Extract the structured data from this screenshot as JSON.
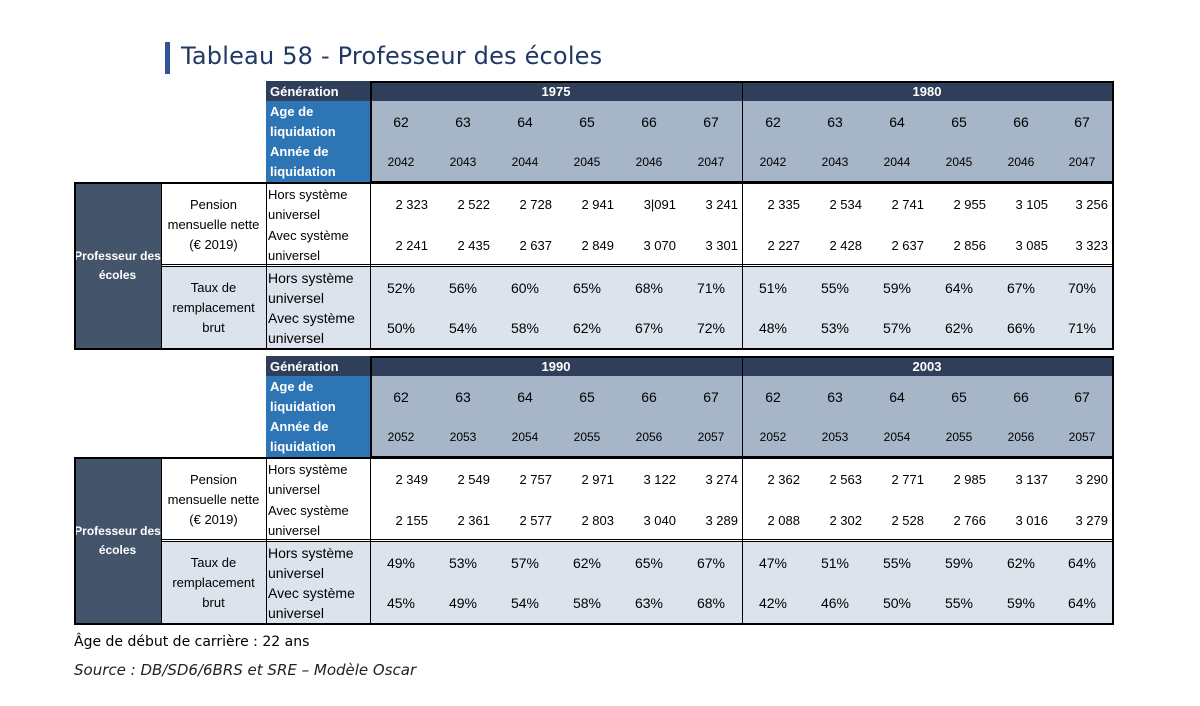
{
  "title": "Tableau 58 - Professeur des écoles",
  "labels": {
    "generation": "Génération",
    "age": "Age de liquidation",
    "annee": "Année de liquidation",
    "profession": "Professeur des écoles",
    "pension": "Pension mensuelle nette (€ 2019)",
    "taux": "Taux de remplacement brut",
    "hors": "Hors système universel",
    "avec": "Avec système universel"
  },
  "blocks": [
    {
      "generations": [
        "1975",
        "1980"
      ],
      "ages": [
        "62",
        "63",
        "64",
        "65",
        "66",
        "67",
        "62",
        "63",
        "64",
        "65",
        "66",
        "67"
      ],
      "years": [
        "2042",
        "2043",
        "2044",
        "2045",
        "2046",
        "2047",
        "2042",
        "2043",
        "2044",
        "2045",
        "2046",
        "2047"
      ],
      "pension_hors": [
        "2 323",
        "2 522",
        "2 728",
        "2 941",
        "3|091",
        "3 241",
        "2 335",
        "2 534",
        "2 741",
        "2 955",
        "3 105",
        "3 256"
      ],
      "pension_avec": [
        "2 241",
        "2 435",
        "2 637",
        "2 849",
        "3 070",
        "3 301",
        "2 227",
        "2 428",
        "2 637",
        "2 856",
        "3 085",
        "3 323"
      ],
      "taux_hors": [
        "52%",
        "56%",
        "60%",
        "65%",
        "68%",
        "71%",
        "51%",
        "55%",
        "59%",
        "64%",
        "67%",
        "70%"
      ],
      "taux_avec": [
        "50%",
        "54%",
        "58%",
        "62%",
        "67%",
        "72%",
        "48%",
        "53%",
        "57%",
        "62%",
        "66%",
        "71%"
      ]
    },
    {
      "generations": [
        "1990",
        "2003"
      ],
      "ages": [
        "62",
        "63",
        "64",
        "65",
        "66",
        "67",
        "62",
        "63",
        "64",
        "65",
        "66",
        "67"
      ],
      "years": [
        "2052",
        "2053",
        "2054",
        "2055",
        "2056",
        "2057",
        "2052",
        "2053",
        "2054",
        "2055",
        "2056",
        "2057"
      ],
      "pension_hors": [
        "2 349",
        "2 549",
        "2 757",
        "2 971",
        "3 122",
        "3 274",
        "2 362",
        "2 563",
        "2 771",
        "2 985",
        "3 137",
        "3 290"
      ],
      "pension_avec": [
        "2 155",
        "2 361",
        "2 577",
        "2 803",
        "3 040",
        "3 289",
        "2 088",
        "2 302",
        "2 528",
        "2 766",
        "3 016",
        "3 279"
      ],
      "taux_hors": [
        "49%",
        "53%",
        "57%",
        "62%",
        "65%",
        "67%",
        "47%",
        "51%",
        "55%",
        "59%",
        "62%",
        "64%"
      ],
      "taux_avec": [
        "45%",
        "49%",
        "54%",
        "58%",
        "63%",
        "68%",
        "42%",
        "46%",
        "50%",
        "55%",
        "59%",
        "64%"
      ]
    }
  ],
  "note": "Âge de début de carrière : 22 ans",
  "source": "Source : DB/SD6/6BRS et SRE – Modèle Oscar"
}
